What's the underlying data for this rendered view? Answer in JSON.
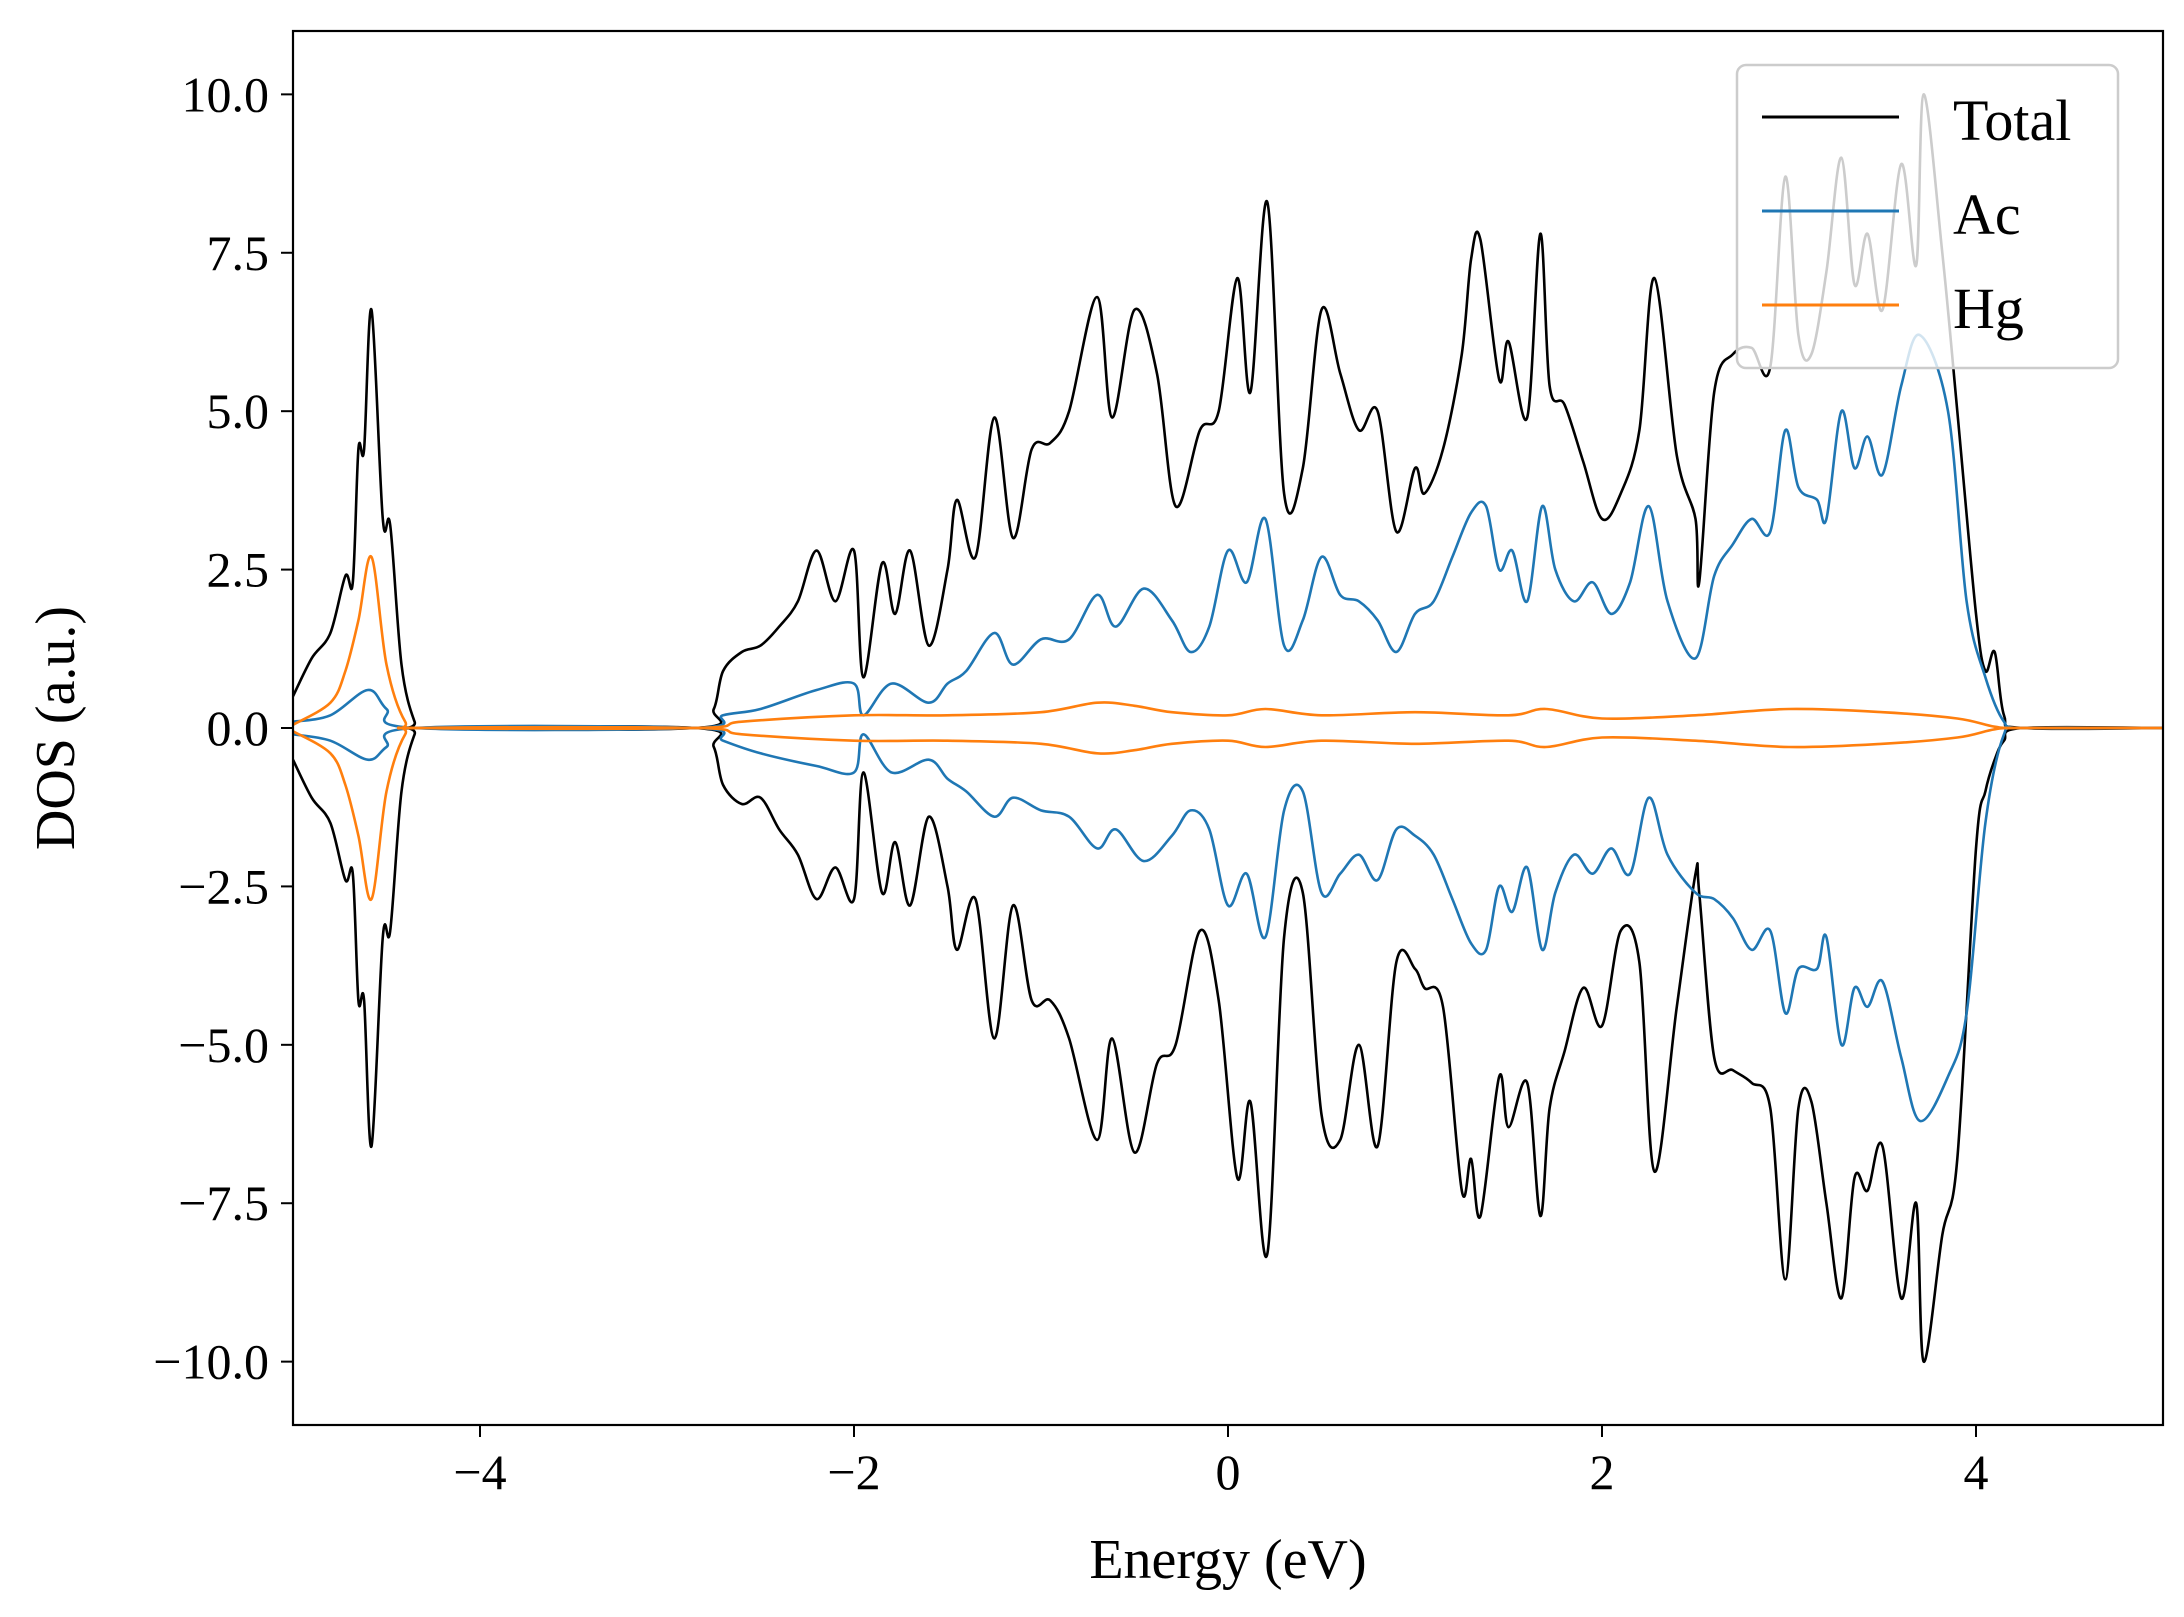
{
  "chart_data": {
    "type": "line",
    "title": "",
    "xlabel": "Energy (eV)",
    "ylabel": "DOS (a.u.)",
    "xlim": [
      -5,
      5
    ],
    "ylim": [
      -11,
      11
    ],
    "grid": false,
    "legend_placement": "top-right",
    "x_ticks": [
      -4,
      -2,
      0,
      2,
      4
    ],
    "x_tick_labels": [
      "−4",
      "−2",
      "0",
      "2",
      "4"
    ],
    "y_ticks": [
      10,
      7.5,
      5,
      2.5,
      0,
      -2.5,
      -5,
      -7.5,
      -10
    ],
    "y_tick_labels": [
      "10.0",
      "7.5",
      "5.0",
      "2.5",
      "0.0",
      "−2.5",
      "−5.0",
      "−7.5",
      "−10.0"
    ],
    "series": [
      {
        "name": "Total",
        "color": "#000000",
        "up": {
          "x": [
            -5,
            -4.9,
            -4.8,
            -4.72,
            -4.68,
            -4.65,
            -4.62,
            -4.58,
            -4.52,
            -4.48,
            -4.42,
            -4.35,
            -4.3,
            -2.85,
            -2.75,
            -2.7,
            -2.6,
            -2.5,
            -2.4,
            -2.3,
            -2.2,
            -2.1,
            -2.0,
            -1.95,
            -1.85,
            -1.78,
            -1.7,
            -1.6,
            -1.5,
            -1.45,
            -1.35,
            -1.25,
            -1.15,
            -1.05,
            -0.95,
            -0.85,
            -0.7,
            -0.62,
            -0.5,
            -0.38,
            -0.28,
            -0.15,
            -0.05,
            0.05,
            0.12,
            0.21,
            0.3,
            0.4,
            0.5,
            0.6,
            0.7,
            0.8,
            0.9,
            1.0,
            1.05,
            1.15,
            1.25,
            1.3,
            1.35,
            1.45,
            1.5,
            1.6,
            1.67,
            1.72,
            1.8,
            1.9,
            2.0,
            2.1,
            2.2,
            2.28,
            2.4,
            2.5,
            2.52,
            2.6,
            2.7,
            2.8,
            2.9,
            2.98,
            3.05,
            3.12,
            3.2,
            3.28,
            3.35,
            3.42,
            3.5,
            3.6,
            3.68,
            3.72,
            3.82,
            3.9,
            4.0,
            4.05,
            4.1,
            4.15,
            4.25,
            5
          ],
          "y": [
            0.5,
            1.1,
            1.5,
            2.4,
            2.3,
            4.4,
            4.4,
            6.6,
            3.3,
            3.2,
            1.0,
            0.1,
            0,
            0,
            0.3,
            0.9,
            1.2,
            1.3,
            1.6,
            2.0,
            2.8,
            2.0,
            2.8,
            0.8,
            2.6,
            1.8,
            2.8,
            1.3,
            2.5,
            3.6,
            2.7,
            4.9,
            3.0,
            4.4,
            4.5,
            5.0,
            6.8,
            4.9,
            6.6,
            5.6,
            3.5,
            4.7,
            5.0,
            7.1,
            5.3,
            8.3,
            3.7,
            4.1,
            6.6,
            5.6,
            4.7,
            5.0,
            3.1,
            4.1,
            3.7,
            4.4,
            5.9,
            7.4,
            7.7,
            5.5,
            6.1,
            4.9,
            7.8,
            5.4,
            5.1,
            4.2,
            3.3,
            3.7,
            4.7,
            7.1,
            4.3,
            3.3,
            2.3,
            5.3,
            5.9,
            6.0,
            5.7,
            8.7,
            6.2,
            5.9,
            7.2,
            9.0,
            7.0,
            7.8,
            6.6,
            8.9,
            7.3,
            10.0,
            7.5,
            5.0,
            1.8,
            0.9,
            1.2,
            0.2,
            0,
            0
          ]
        },
        "down": {
          "x": [
            -5,
            -4.9,
            -4.8,
            -4.72,
            -4.68,
            -4.65,
            -4.62,
            -4.58,
            -4.52,
            -4.48,
            -4.42,
            -4.35,
            -4.3,
            -2.85,
            -2.75,
            -2.7,
            -2.6,
            -2.5,
            -2.4,
            -2.3,
            -2.2,
            -2.1,
            -2.0,
            -1.95,
            -1.85,
            -1.78,
            -1.7,
            -1.6,
            -1.5,
            -1.45,
            -1.35,
            -1.25,
            -1.15,
            -1.05,
            -0.95,
            -0.85,
            -0.7,
            -0.62,
            -0.5,
            -0.38,
            -0.28,
            -0.15,
            -0.05,
            0.05,
            0.12,
            0.21,
            0.3,
            0.4,
            0.5,
            0.6,
            0.7,
            0.8,
            0.9,
            1.0,
            1.05,
            1.15,
            1.25,
            1.3,
            1.35,
            1.45,
            1.5,
            1.6,
            1.67,
            1.72,
            1.8,
            1.9,
            2.0,
            2.1,
            2.2,
            2.28,
            2.4,
            2.5,
            2.52,
            2.6,
            2.7,
            2.8,
            2.9,
            2.98,
            3.05,
            3.12,
            3.2,
            3.28,
            3.35,
            3.42,
            3.5,
            3.6,
            3.68,
            3.72,
            3.82,
            3.9,
            4.0,
            4.05,
            4.1,
            4.15,
            4.25,
            5
          ],
          "y": [
            -0.5,
            -1.1,
            -1.5,
            -2.4,
            -2.3,
            -4.3,
            -4.3,
            -6.6,
            -3.3,
            -3.2,
            -1.0,
            -0.1,
            0,
            0,
            -0.3,
            -0.9,
            -1.2,
            -1.1,
            -1.6,
            -2.0,
            -2.7,
            -2.2,
            -2.7,
            -0.7,
            -2.6,
            -1.8,
            -2.8,
            -1.4,
            -2.5,
            -3.5,
            -2.7,
            -4.9,
            -2.8,
            -4.3,
            -4.3,
            -4.9,
            -6.5,
            -4.9,
            -6.7,
            -5.3,
            -5.0,
            -3.2,
            -4.3,
            -7.1,
            -5.9,
            -8.3,
            -3.3,
            -2.6,
            -6.1,
            -6.5,
            -5.0,
            -6.6,
            -3.7,
            -3.8,
            -4.1,
            -4.4,
            -7.3,
            -6.8,
            -7.7,
            -5.5,
            -6.3,
            -5.6,
            -7.7,
            -6.0,
            -5.1,
            -4.1,
            -4.7,
            -3.2,
            -3.7,
            -7.0,
            -4.4,
            -2.3,
            -2.6,
            -5.2,
            -5.4,
            -5.6,
            -6.0,
            -8.7,
            -6.0,
            -5.9,
            -7.5,
            -9.0,
            -7.1,
            -7.3,
            -6.6,
            -9.0,
            -7.5,
            -10.0,
            -8.0,
            -6.8,
            -1.9,
            -1.0,
            -0.5,
            -0.2,
            0,
            0
          ]
        }
      },
      {
        "name": "Ac",
        "color": "#1f77b4",
        "up": {
          "x": [
            -5,
            -4.8,
            -4.6,
            -4.5,
            -4.35,
            -2.85,
            -2.7,
            -2.5,
            -2.2,
            -2.0,
            -1.95,
            -1.8,
            -1.6,
            -1.5,
            -1.4,
            -1.25,
            -1.15,
            -1.0,
            -0.85,
            -0.7,
            -0.6,
            -0.45,
            -0.3,
            -0.2,
            -0.1,
            0.0,
            0.1,
            0.2,
            0.3,
            0.4,
            0.5,
            0.6,
            0.7,
            0.8,
            0.9,
            1.0,
            1.1,
            1.2,
            1.3,
            1.38,
            1.45,
            1.52,
            1.6,
            1.68,
            1.75,
            1.85,
            1.95,
            2.05,
            2.15,
            2.25,
            2.35,
            2.5,
            2.6,
            2.7,
            2.8,
            2.9,
            2.98,
            3.05,
            3.15,
            3.2,
            3.28,
            3.35,
            3.42,
            3.5,
            3.6,
            3.7,
            3.85,
            3.95,
            4.05,
            4.15,
            4.25,
            5
          ],
          "y": [
            0.1,
            0.2,
            0.6,
            0.3,
            0,
            0,
            0.2,
            0.3,
            0.6,
            0.7,
            0.2,
            0.7,
            0.4,
            0.7,
            0.9,
            1.5,
            1.0,
            1.4,
            1.4,
            2.1,
            1.6,
            2.2,
            1.7,
            1.2,
            1.6,
            2.8,
            2.3,
            3.3,
            1.3,
            1.7,
            2.7,
            2.1,
            2.0,
            1.7,
            1.2,
            1.8,
            2.0,
            2.7,
            3.4,
            3.5,
            2.5,
            2.8,
            2.0,
            3.5,
            2.5,
            2.0,
            2.3,
            1.8,
            2.3,
            3.5,
            2.0,
            1.1,
            2.4,
            2.9,
            3.3,
            3.1,
            4.7,
            3.8,
            3.6,
            3.3,
            5.0,
            4.1,
            4.6,
            4.0,
            5.4,
            6.2,
            5.0,
            2.0,
            0.8,
            0.1,
            0,
            0
          ]
        },
        "down": {
          "x": [
            -5,
            -4.8,
            -4.6,
            -4.5,
            -4.35,
            -2.85,
            -2.7,
            -2.5,
            -2.2,
            -2.0,
            -1.95,
            -1.8,
            -1.6,
            -1.5,
            -1.4,
            -1.25,
            -1.15,
            -1.0,
            -0.85,
            -0.7,
            -0.6,
            -0.45,
            -0.3,
            -0.2,
            -0.1,
            0.0,
            0.1,
            0.2,
            0.3,
            0.4,
            0.5,
            0.6,
            0.7,
            0.8,
            0.9,
            1.0,
            1.1,
            1.2,
            1.3,
            1.38,
            1.45,
            1.52,
            1.6,
            1.68,
            1.75,
            1.85,
            1.95,
            2.05,
            2.15,
            2.25,
            2.35,
            2.5,
            2.6,
            2.7,
            2.8,
            2.9,
            2.98,
            3.05,
            3.15,
            3.2,
            3.28,
            3.35,
            3.42,
            3.5,
            3.6,
            3.7,
            3.85,
            3.95,
            4.05,
            4.15,
            4.25,
            5
          ],
          "y": [
            -0.1,
            -0.2,
            -0.5,
            -0.3,
            0,
            0,
            -0.2,
            -0.4,
            -0.6,
            -0.7,
            -0.1,
            -0.7,
            -0.5,
            -0.8,
            -1.0,
            -1.4,
            -1.1,
            -1.3,
            -1.4,
            -1.9,
            -1.6,
            -2.1,
            -1.7,
            -1.3,
            -1.6,
            -2.8,
            -2.3,
            -3.3,
            -1.3,
            -1.0,
            -2.6,
            -2.3,
            -2.0,
            -2.4,
            -1.6,
            -1.7,
            -2.0,
            -2.7,
            -3.4,
            -3.5,
            -2.5,
            -2.9,
            -2.2,
            -3.5,
            -2.6,
            -2.0,
            -2.3,
            -1.9,
            -2.3,
            -1.1,
            -2.0,
            -2.6,
            -2.7,
            -3.0,
            -3.5,
            -3.2,
            -4.5,
            -3.8,
            -3.8,
            -3.3,
            -5.0,
            -4.1,
            -4.4,
            -4.0,
            -5.2,
            -6.2,
            -5.5,
            -4.5,
            -1.5,
            -0.1,
            0,
            0
          ]
        }
      },
      {
        "name": "Hg",
        "color": "#ff7f0e",
        "up": {
          "x": [
            -5,
            -4.8,
            -4.72,
            -4.65,
            -4.58,
            -4.5,
            -4.4,
            -4.3,
            -2.85,
            -2.6,
            -2.0,
            -1.5,
            -1.0,
            -0.7,
            -0.5,
            -0.3,
            0,
            0.2,
            0.5,
            1.0,
            1.5,
            1.7,
            2.0,
            2.5,
            3.0,
            3.5,
            3.9,
            4.1,
            4.25,
            5
          ],
          "y": [
            0.05,
            0.4,
            0.9,
            1.7,
            2.7,
            1.0,
            0.1,
            0,
            0,
            0.1,
            0.2,
            0.2,
            0.25,
            0.4,
            0.35,
            0.25,
            0.2,
            0.3,
            0.2,
            0.25,
            0.2,
            0.3,
            0.15,
            0.2,
            0.3,
            0.25,
            0.15,
            0.02,
            0,
            0
          ]
        },
        "down": {
          "x": [
            -5,
            -4.8,
            -4.72,
            -4.65,
            -4.58,
            -4.5,
            -4.4,
            -4.3,
            -2.85,
            -2.6,
            -2.0,
            -1.5,
            -1.0,
            -0.7,
            -0.5,
            -0.3,
            0,
            0.2,
            0.5,
            1.0,
            1.5,
            1.7,
            2.0,
            2.5,
            3.0,
            3.5,
            3.9,
            4.1,
            4.25,
            5
          ],
          "y": [
            -0.05,
            -0.4,
            -0.9,
            -1.7,
            -2.7,
            -1.0,
            -0.1,
            0,
            0,
            -0.1,
            -0.2,
            -0.2,
            -0.25,
            -0.4,
            -0.35,
            -0.25,
            -0.2,
            -0.3,
            -0.2,
            -0.25,
            -0.2,
            -0.3,
            -0.15,
            -0.2,
            -0.3,
            -0.25,
            -0.15,
            -0.02,
            0,
            0
          ]
        }
      }
    ]
  }
}
